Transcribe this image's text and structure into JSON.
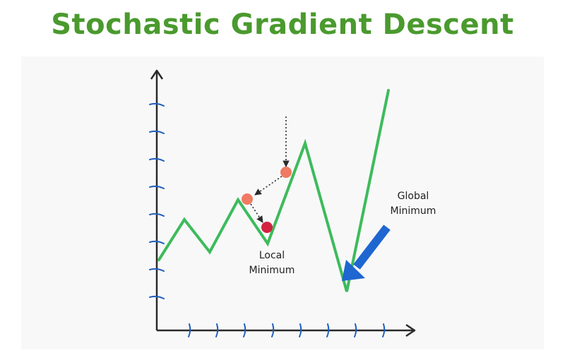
{
  "title": "Stochastic Gradient Descent",
  "labels": {
    "local_minimum": [
      "Local",
      "Minimum"
    ],
    "global_minimum": [
      "Global",
      "Minimum"
    ]
  },
  "colors": {
    "title": "#4a9a2e",
    "curve": "#3dbb5c",
    "axis": "#2a2a2a",
    "ticks": "#1f5fbf",
    "ball": "#f07a62",
    "ball_final": "#d3213f",
    "arrow": "#1f66d1",
    "panel": "#f8f8f8"
  }
}
